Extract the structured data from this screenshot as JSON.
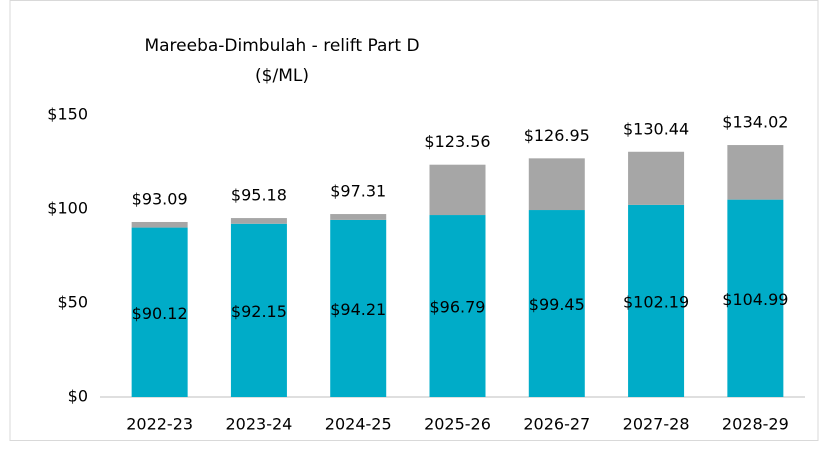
{
  "chart_data": {
    "type": "stacked_bar",
    "title": "Mareeba-Dimbulah - relift Part D",
    "subtitle": "($/ML)",
    "categories": [
      "2022-23",
      "2023-24",
      "2024-25",
      "2025-26",
      "2026-27",
      "2027-28",
      "2028-29"
    ],
    "series": [
      {
        "color": "#00acc8",
        "values": [
          90.12,
          92.15,
          94.21,
          96.79,
          99.45,
          102.19,
          104.99
        ],
        "value_labels": [
          "$90.12",
          "$92.15",
          "$94.21",
          "$96.79",
          "$99.45",
          "$102.19",
          "$104.99"
        ]
      },
      {
        "color": "#a6a6a6",
        "values": [
          2.97,
          3.03,
          3.1,
          26.77,
          27.5,
          28.25,
          29.03
        ]
      }
    ],
    "totals": [
      93.09,
      95.18,
      97.31,
      123.56,
      126.95,
      130.44,
      134.02
    ],
    "total_labels": [
      "$93.09",
      "$95.18",
      "$97.31",
      "$123.56",
      "$126.95",
      "$130.44",
      "$134.02"
    ],
    "ylim": [
      0,
      150
    ],
    "yticks": [
      {
        "value": 0,
        "label": "$0"
      },
      {
        "value": 50,
        "label": "$50"
      },
      {
        "value": 100,
        "label": "$100"
      },
      {
        "value": 150,
        "label": "$150"
      }
    ],
    "grid": false
  }
}
